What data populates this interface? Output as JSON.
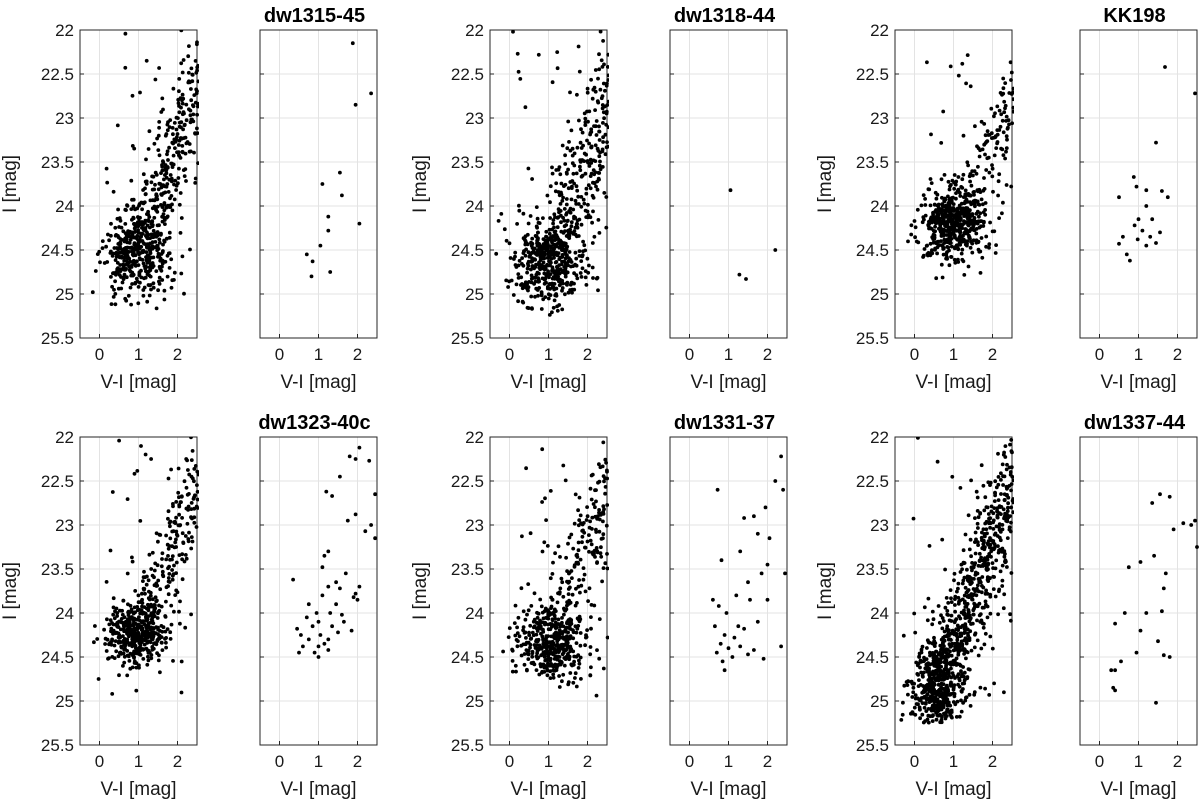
{
  "chart_data": {
    "type": "scatter",
    "description_note": "Colour-magnitude diagrams: for each dwarf galaxy a field-star panel (left, untitled) and a galaxy-region panel (right, titled).",
    "shared_axes": {
      "xlabel": "V-I [mag]",
      "ylabel": "I [mag]",
      "xlim": [
        -0.5,
        2.5
      ],
      "ylim": [
        22,
        25.5
      ],
      "y_reversed": true,
      "xticks": [
        0,
        1,
        2
      ],
      "yticks": [
        22,
        22.5,
        23,
        23.5,
        24,
        24.5,
        25,
        25.5
      ],
      "xtick_labels": [
        "0",
        "1",
        "2"
      ],
      "ytick_labels": [
        "22",
        "22.5",
        "23",
        "23.5",
        "24",
        "24.5",
        "25",
        "25.5"
      ],
      "grid": true,
      "marker_color": "#000000"
    },
    "panels": [
      {
        "id": "p0",
        "galaxy": "dw1315-45",
        "role": "field",
        "title": "",
        "seed": 11,
        "gen": {
          "n_clump": 340,
          "clump": [
            0.95,
            24.55,
            0.42,
            0.25
          ],
          "n_branch": 420,
          "branch_slope": -0.85,
          "spread": 0.32,
          "n_bg": 40,
          "lo": 0.1
        },
        "points": []
      },
      {
        "id": "p1",
        "galaxy": "dw1315-45",
        "role": "galaxy",
        "title": "dw1315-45",
        "points": [
          [
            1.88,
            22.15
          ],
          [
            2.35,
            22.72
          ],
          [
            1.95,
            22.85
          ],
          [
            1.1,
            23.75
          ],
          [
            1.55,
            23.62
          ],
          [
            1.6,
            23.88
          ],
          [
            1.25,
            24.12
          ],
          [
            2.05,
            24.2
          ],
          [
            1.25,
            24.28
          ],
          [
            1.05,
            24.45
          ],
          [
            0.7,
            24.55
          ],
          [
            0.85,
            24.63
          ],
          [
            1.3,
            24.75
          ],
          [
            0.82,
            24.8
          ]
        ]
      },
      {
        "id": "p2",
        "galaxy": "dw1318-44",
        "role": "field",
        "title": "",
        "seed": 23,
        "gen": {
          "n_clump": 380,
          "clump": [
            0.95,
            24.65,
            0.45,
            0.25
          ],
          "n_branch": 440,
          "branch_slope": -0.9,
          "spread": 0.35,
          "n_bg": 40,
          "lo": 0.0
        },
        "points": []
      },
      {
        "id": "p3",
        "galaxy": "dw1318-44",
        "role": "galaxy",
        "title": "dw1318-44",
        "points": [
          [
            1.05,
            23.82
          ],
          [
            2.2,
            24.5
          ],
          [
            1.28,
            24.78
          ],
          [
            1.45,
            24.83
          ]
        ]
      },
      {
        "id": "p4",
        "galaxy": "KK198",
        "role": "field",
        "title": "",
        "seed": 37,
        "gen": {
          "n_clump": 430,
          "clump": [
            1.05,
            24.2,
            0.42,
            0.2
          ],
          "n_branch": 260,
          "branch_slope": -1.05,
          "spread": 0.3,
          "n_bg": 30,
          "lo": 0.2
        },
        "points": []
      },
      {
        "id": "p5",
        "galaxy": "KK198",
        "role": "galaxy",
        "title": "KK198",
        "points": [
          [
            1.68,
            22.42
          ],
          [
            2.45,
            22.72
          ],
          [
            1.45,
            23.28
          ],
          [
            0.88,
            23.67
          ],
          [
            0.95,
            23.78
          ],
          [
            1.2,
            23.82
          ],
          [
            1.6,
            23.83
          ],
          [
            0.5,
            23.9
          ],
          [
            1.75,
            23.9
          ],
          [
            1.2,
            24.0
          ],
          [
            1.0,
            24.15
          ],
          [
            1.35,
            24.15
          ],
          [
            0.9,
            24.22
          ],
          [
            1.1,
            24.28
          ],
          [
            1.55,
            24.3
          ],
          [
            0.6,
            24.35
          ],
          [
            1.3,
            24.35
          ],
          [
            0.98,
            24.38
          ],
          [
            1.45,
            24.42
          ],
          [
            0.5,
            24.43
          ],
          [
            1.2,
            24.45
          ],
          [
            0.7,
            24.55
          ],
          [
            0.78,
            24.62
          ]
        ]
      },
      {
        "id": "p6",
        "galaxy": "dw1323-40c",
        "role": "field",
        "title": "",
        "seed": 41,
        "gen": {
          "n_clump": 320,
          "clump": [
            0.95,
            24.25,
            0.38,
            0.18
          ],
          "n_branch": 300,
          "branch_slope": -0.95,
          "spread": 0.32,
          "n_bg": 30,
          "lo": 0.2
        },
        "points": []
      },
      {
        "id": "p7",
        "galaxy": "dw1323-40c",
        "role": "galaxy",
        "title": "dw1323-40c",
        "points": [
          [
            2.05,
            22.12
          ],
          [
            1.8,
            22.22
          ],
          [
            1.95,
            22.25
          ],
          [
            2.3,
            22.27
          ],
          [
            1.55,
            22.45
          ],
          [
            1.2,
            22.62
          ],
          [
            1.35,
            22.67
          ],
          [
            2.45,
            22.65
          ],
          [
            1.95,
            22.88
          ],
          [
            1.75,
            22.95
          ],
          [
            2.35,
            23.0
          ],
          [
            2.2,
            23.07
          ],
          [
            2.45,
            23.15
          ],
          [
            1.25,
            23.3
          ],
          [
            1.15,
            23.35
          ],
          [
            0.35,
            23.62
          ],
          [
            1.1,
            23.48
          ],
          [
            1.7,
            23.55
          ],
          [
            1.45,
            23.65
          ],
          [
            1.25,
            23.7
          ],
          [
            1.55,
            23.72
          ],
          [
            2.05,
            23.7
          ],
          [
            1.1,
            23.8
          ],
          [
            1.95,
            23.78
          ],
          [
            2.0,
            23.85
          ],
          [
            0.75,
            23.9
          ],
          [
            1.45,
            23.9
          ],
          [
            1.9,
            23.82
          ],
          [
            0.95,
            24.0
          ],
          [
            1.3,
            24.0
          ],
          [
            1.6,
            24.02
          ],
          [
            0.7,
            24.05
          ],
          [
            1.0,
            24.1
          ],
          [
            0.45,
            24.18
          ],
          [
            0.85,
            24.15
          ],
          [
            1.35,
            24.15
          ],
          [
            1.65,
            24.1
          ],
          [
            1.85,
            24.2
          ],
          [
            0.55,
            24.25
          ],
          [
            1.05,
            24.25
          ],
          [
            1.5,
            24.22
          ],
          [
            0.75,
            24.3
          ],
          [
            1.25,
            24.3
          ],
          [
            0.6,
            24.38
          ],
          [
            1.0,
            24.38
          ],
          [
            0.9,
            24.45
          ],
          [
            1.15,
            24.35
          ],
          [
            0.5,
            24.45
          ],
          [
            1.25,
            24.42
          ],
          [
            1.0,
            24.5
          ]
        ]
      },
      {
        "id": "p8",
        "galaxy": "dw1331-37",
        "role": "field",
        "title": "",
        "seed": 53,
        "gen": {
          "n_clump": 360,
          "clump": [
            1.05,
            24.35,
            0.45,
            0.2
          ],
          "n_branch": 260,
          "branch_slope": -0.85,
          "spread": 0.35,
          "n_bg": 30,
          "lo": 0.3
        },
        "points": []
      },
      {
        "id": "p9",
        "galaxy": "dw1331-37",
        "role": "galaxy",
        "title": "dw1331-37",
        "points": [
          [
            2.35,
            22.22
          ],
          [
            2.2,
            22.5
          ],
          [
            2.4,
            22.6
          ],
          [
            0.72,
            22.6
          ],
          [
            1.95,
            22.8
          ],
          [
            1.65,
            22.9
          ],
          [
            1.4,
            22.92
          ],
          [
            1.75,
            23.1
          ],
          [
            2.05,
            23.15
          ],
          [
            1.3,
            23.3
          ],
          [
            2.45,
            23.55
          ],
          [
            2.0,
            23.45
          ],
          [
            0.82,
            23.4
          ],
          [
            1.5,
            23.65
          ],
          [
            1.85,
            23.55
          ],
          [
            0.6,
            23.85
          ],
          [
            1.2,
            23.8
          ],
          [
            1.55,
            23.85
          ],
          [
            0.75,
            23.92
          ],
          [
            2.0,
            23.85
          ],
          [
            0.95,
            24.0
          ],
          [
            1.75,
            24.1
          ],
          [
            1.25,
            24.15
          ],
          [
            0.65,
            24.15
          ],
          [
            1.4,
            24.18
          ],
          [
            0.9,
            24.25
          ],
          [
            1.15,
            24.28
          ],
          [
            0.8,
            24.35
          ],
          [
            2.35,
            24.38
          ],
          [
            1.0,
            24.4
          ],
          [
            1.3,
            24.38
          ],
          [
            1.65,
            24.42
          ],
          [
            0.7,
            24.45
          ],
          [
            1.5,
            24.47
          ],
          [
            1.1,
            24.5
          ],
          [
            1.9,
            24.52
          ],
          [
            0.85,
            24.55
          ],
          [
            0.9,
            24.65
          ]
        ]
      },
      {
        "id": "p10",
        "galaxy": "dw1337-44",
        "role": "field",
        "title": "",
        "seed": 67,
        "gen": {
          "n_clump": 480,
          "clump": [
            0.6,
            24.85,
            0.35,
            0.25
          ],
          "n_branch": 640,
          "branch_slope": -0.85,
          "spread": 0.33,
          "n_bg": 40,
          "lo": -0.2
        },
        "points": []
      },
      {
        "id": "p11",
        "galaxy": "dw1337-44",
        "role": "galaxy",
        "title": "dw1337-44",
        "points": [
          [
            1.55,
            22.65
          ],
          [
            1.8,
            22.68
          ],
          [
            1.35,
            22.75
          ],
          [
            2.45,
            22.95
          ],
          [
            2.15,
            22.98
          ],
          [
            2.35,
            23.0
          ],
          [
            1.9,
            23.05
          ],
          [
            2.5,
            23.25
          ],
          [
            1.4,
            23.35
          ],
          [
            1.05,
            23.42
          ],
          [
            0.75,
            23.48
          ],
          [
            1.7,
            23.55
          ],
          [
            1.65,
            23.72
          ],
          [
            1.2,
            24.0
          ],
          [
            0.65,
            24.0
          ],
          [
            1.6,
            23.98
          ],
          [
            0.4,
            24.12
          ],
          [
            1.05,
            24.2
          ],
          [
            1.5,
            24.32
          ],
          [
            0.95,
            24.45
          ],
          [
            1.65,
            24.48
          ],
          [
            1.8,
            24.5
          ],
          [
            0.55,
            24.55
          ],
          [
            0.3,
            24.65
          ],
          [
            0.4,
            24.65
          ],
          [
            0.35,
            24.85
          ],
          [
            0.4,
            24.88
          ],
          [
            1.45,
            25.02
          ]
        ]
      }
    ]
  }
}
